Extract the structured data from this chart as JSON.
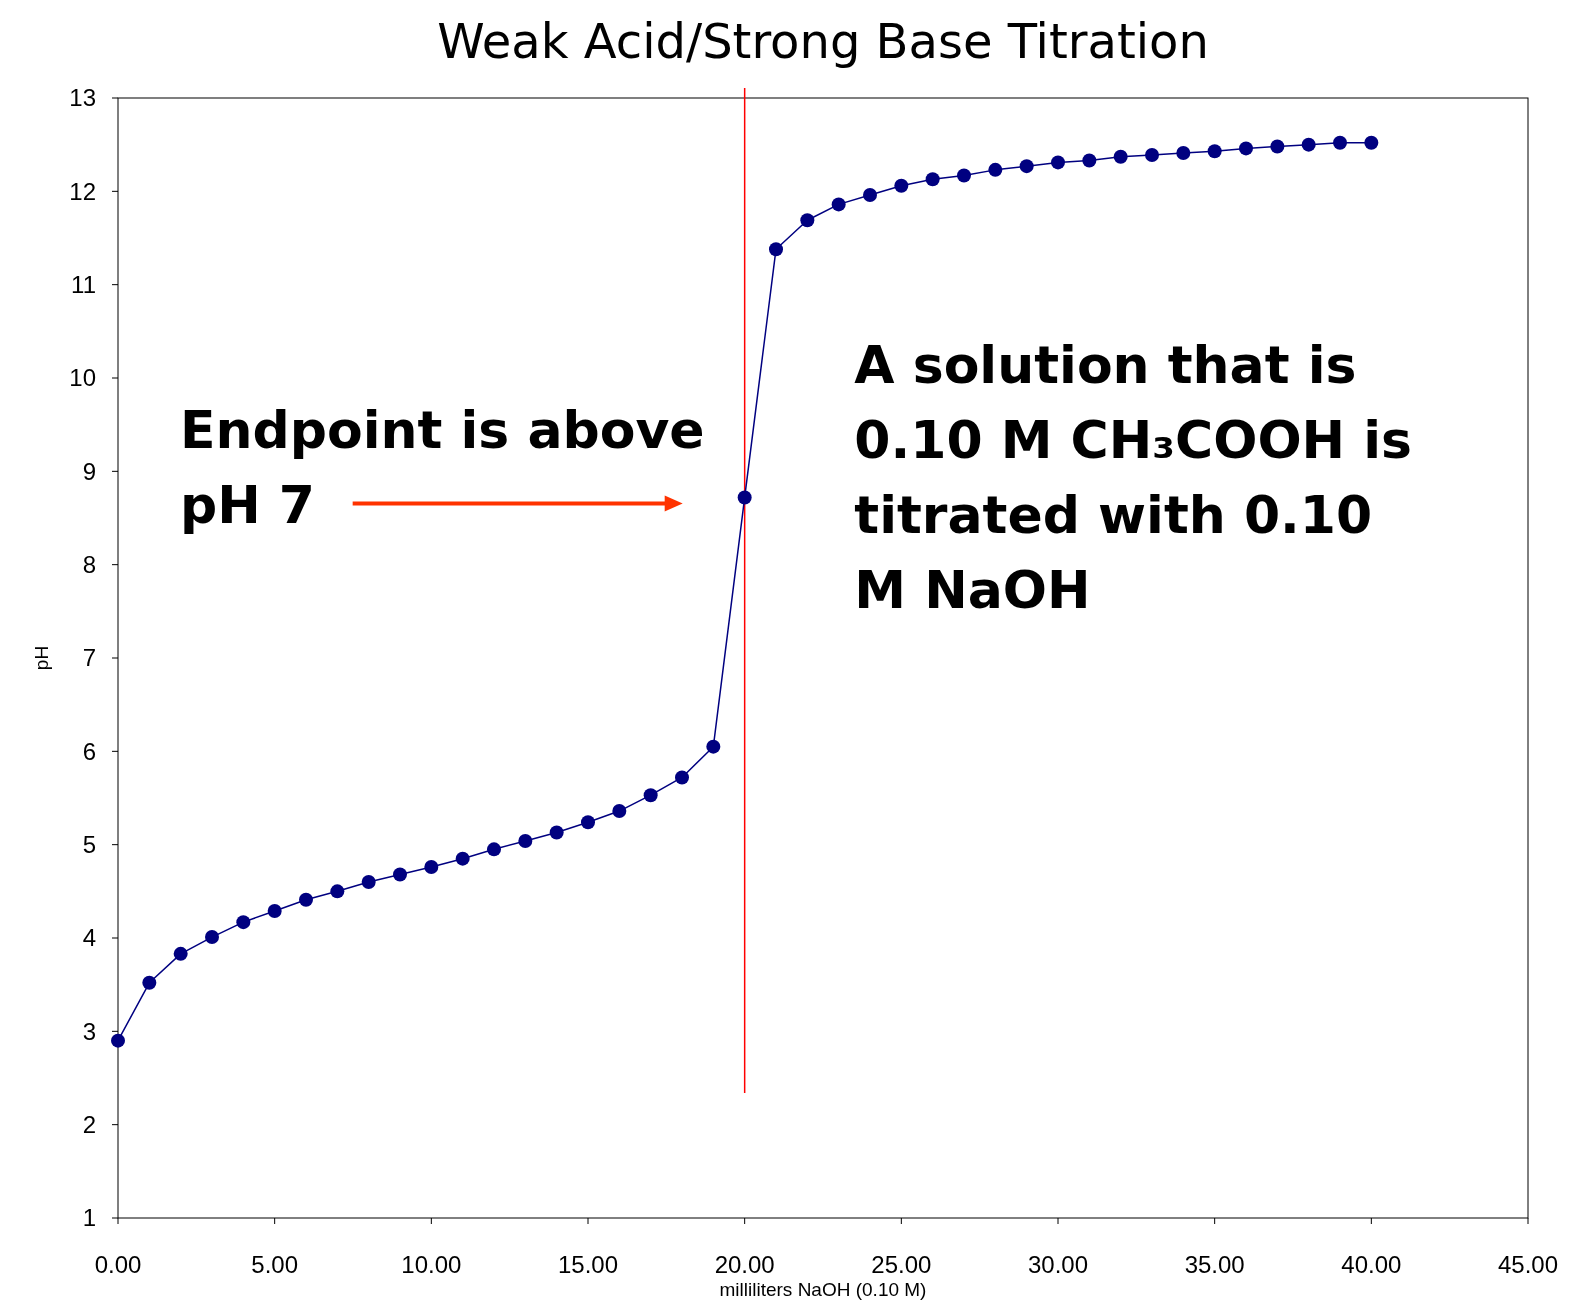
{
  "chart_data": {
    "type": "line",
    "title": "Weak Acid/Strong Base Titration",
    "xlabel": "milliliters NaOH (0.10 M)",
    "ylabel": "pH",
    "x": [
      0,
      1,
      2,
      3,
      4,
      5,
      6,
      7,
      8,
      9,
      10,
      11,
      12,
      13,
      14,
      15,
      16,
      17,
      18,
      19,
      20,
      21,
      22,
      23,
      24,
      25,
      26,
      27,
      28,
      29,
      30,
      31,
      32,
      33,
      34,
      35,
      36,
      37,
      38,
      39,
      40
    ],
    "series": [
      {
        "color": "#000080",
        "values": [
          2.9,
          3.52,
          3.83,
          4.01,
          4.17,
          4.29,
          4.41,
          4.5,
          4.6,
          4.68,
          4.76,
          4.85,
          4.95,
          5.04,
          5.13,
          5.24,
          5.36,
          5.53,
          5.72,
          6.05,
          8.72,
          11.38,
          11.69,
          11.86,
          11.96,
          12.06,
          12.13,
          12.17,
          12.23,
          12.27,
          12.31,
          12.33,
          12.37,
          12.39,
          12.41,
          12.43,
          12.46,
          12.48,
          12.5,
          12.52,
          12.52
        ]
      }
    ],
    "xlim": [
      0,
      45
    ],
    "xticks": [
      {
        "value": 0,
        "label": "0.00"
      },
      {
        "value": 5,
        "label": "5.00"
      },
      {
        "value": 10,
        "label": "10.00"
      },
      {
        "value": 15,
        "label": "15.00"
      },
      {
        "value": 20,
        "label": "20.00"
      },
      {
        "value": 25,
        "label": "25.00"
      },
      {
        "value": 30,
        "label": "30.00"
      },
      {
        "value": 35,
        "label": "35.00"
      },
      {
        "value": 40,
        "label": "40.00"
      },
      {
        "value": 45,
        "label": "45.00"
      }
    ],
    "ylim": [
      1,
      13
    ],
    "yticks": [
      1,
      2,
      3,
      4,
      5,
      6,
      7,
      8,
      9,
      10,
      11,
      12,
      13
    ],
    "ref_lines": [
      {
        "axis": "x",
        "value": 20,
        "color": "#ff0000"
      }
    ],
    "annotations": [
      {
        "text": "Endpoint is above pH 7",
        "x": 20,
        "y": 8.72
      },
      "A solution that is 0.10 M CH₃COOH is titrated with 0.10 M NaOH"
    ],
    "grid": false,
    "marker": "circle",
    "line_style": "solid"
  }
}
